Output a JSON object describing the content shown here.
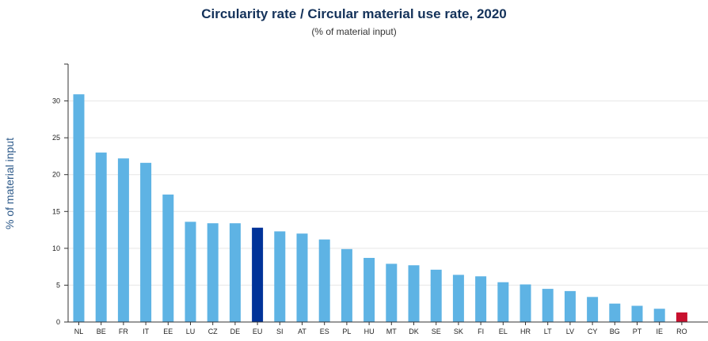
{
  "chart_data": {
    "type": "bar",
    "title": "Circularity rate / Circular material use rate, 2020",
    "subtitle": "(% of material input)",
    "ylabel": "% of material input",
    "xlabel": "",
    "ylim": [
      0,
      35
    ],
    "yticks": [
      0,
      5,
      10,
      15,
      20,
      25,
      30
    ],
    "categories": [
      "NL",
      "BE",
      "FR",
      "IT",
      "EE",
      "LU",
      "CZ",
      "DE",
      "EU",
      "SI",
      "AT",
      "ES",
      "PL",
      "HU",
      "MT",
      "DK",
      "SE",
      "SK",
      "FI",
      "EL",
      "HR",
      "LT",
      "LV",
      "CY",
      "BG",
      "PT",
      "IE",
      "RO"
    ],
    "values": [
      30.9,
      23.0,
      22.2,
      21.6,
      17.3,
      13.6,
      13.4,
      13.4,
      12.8,
      12.3,
      12.0,
      11.2,
      9.9,
      8.7,
      7.9,
      7.7,
      7.1,
      6.4,
      6.2,
      5.4,
      5.1,
      4.5,
      4.2,
      3.4,
      2.5,
      2.2,
      1.8,
      1.3
    ],
    "colors": {
      "default": "#5eb3e4",
      "EU": "#003399",
      "RO": "#c8102e"
    },
    "grid": true,
    "legend": "none"
  }
}
